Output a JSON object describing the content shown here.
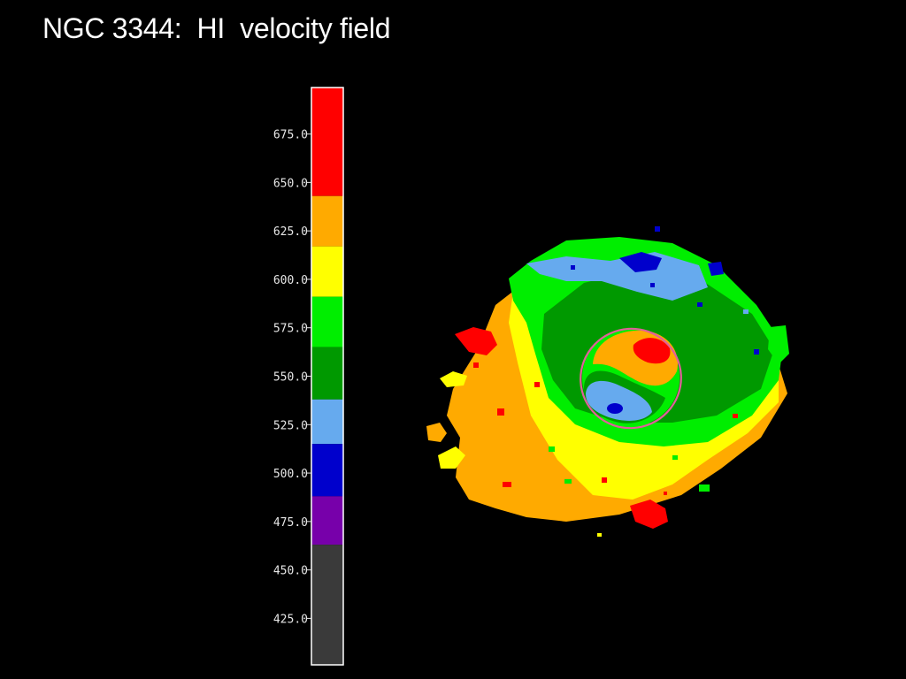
{
  "slide": {
    "title": "NGC 3344:  HI  velocity field"
  },
  "colors": {
    "background": "#000000",
    "scale_border": "#ffffff",
    "ellipse": "#e0609a",
    "band_red": "#ff0000",
    "band_orange": "#ffaa00",
    "band_yellow": "#ffff00",
    "band_lightgreen": "#00ee00",
    "band_darkgreen": "#009900",
    "band_lightblue": "#66aaee",
    "band_blue": "#0000cc",
    "band_purple": "#7700aa",
    "band_gray": "#3a3a3a"
  },
  "chart_data": {
    "type": "heatmap",
    "title": "NGC 3344:  HI  velocity field",
    "colorbar": {
      "range": [
        400,
        700
      ],
      "ticks": [
        675,
        650,
        625,
        600,
        575,
        550,
        525,
        500,
        475,
        450,
        425
      ],
      "tick_labels": [
        "675.0",
        "650.0",
        "625.0",
        "600.0",
        "575.0",
        "550.0",
        "525.0",
        "500.0",
        "475.0",
        "450.0",
        "425.0"
      ],
      "bands": [
        {
          "from": 643,
          "to": 700,
          "color": "#ff0000"
        },
        {
          "from": 617,
          "to": 643,
          "color": "#ffaa00"
        },
        {
          "from": 591,
          "to": 617,
          "color": "#ffff00"
        },
        {
          "from": 565,
          "to": 591,
          "color": "#00ee00"
        },
        {
          "from": 538,
          "to": 565,
          "color": "#009900"
        },
        {
          "from": 515,
          "to": 538,
          "color": "#66aaee"
        },
        {
          "from": 488,
          "to": 515,
          "color": "#0000cc"
        },
        {
          "from": 463,
          "to": 488,
          "color": "#7700aa"
        },
        {
          "from": 400,
          "to": 463,
          "color": "#3a3a3a"
        }
      ]
    }
  }
}
